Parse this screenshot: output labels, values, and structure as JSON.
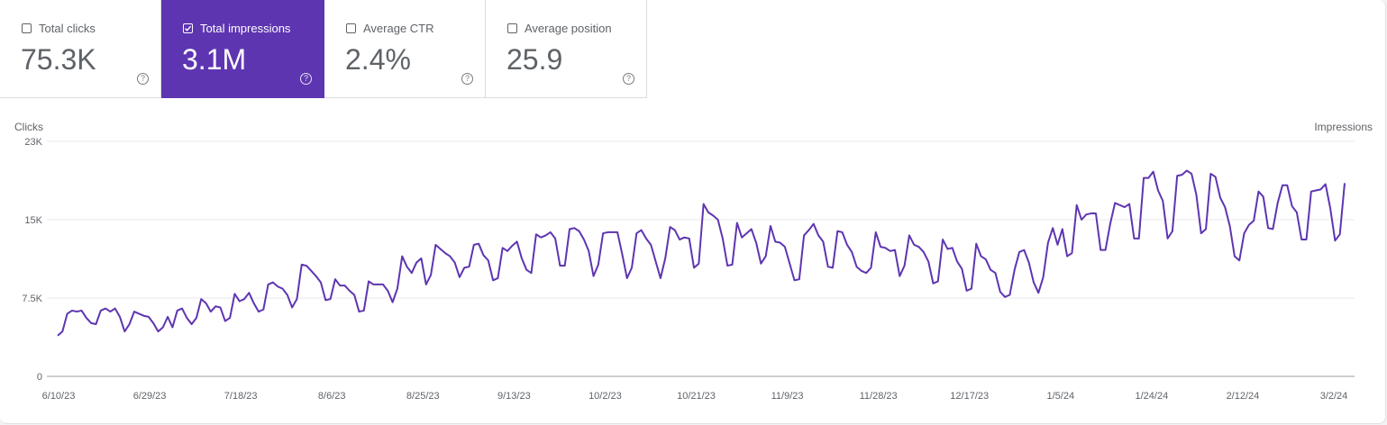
{
  "metrics": [
    {
      "label": "Total clicks",
      "value": "75.3K",
      "checked": false
    },
    {
      "label": "Total impressions",
      "value": "3.1M",
      "checked": true
    },
    {
      "label": "Average CTR",
      "value": "2.4%",
      "checked": false
    },
    {
      "label": "Average position",
      "value": "25.9",
      "checked": false
    }
  ],
  "help_glyph": "?",
  "colors": {
    "accent": "#5e35b1",
    "line": "#5e35b1",
    "grid": "#e8eaed"
  },
  "chart_data": {
    "type": "line",
    "left_axis_label": "Clicks",
    "right_axis_label": "Impressions",
    "y_ticks": [
      {
        "value": 0,
        "label": "0"
      },
      {
        "value": 7500,
        "label": "7.5K"
      },
      {
        "value": 15000,
        "label": "15K"
      },
      {
        "value": 22500,
        "label": "23K"
      }
    ],
    "ylim": [
      0,
      22500
    ],
    "x_start": "6/10/23",
    "x_end": "3/3/24",
    "x_tick_labels": [
      "6/10/23",
      "6/29/23",
      "7/18/23",
      "8/6/23",
      "8/25/23",
      "9/13/23",
      "10/2/23",
      "10/21/23",
      "11/9/23",
      "11/28/23",
      "12/17/23",
      "1/5/24",
      "1/24/24",
      "2/12/24",
      "3/2/24"
    ],
    "grid": true,
    "series": [
      {
        "values": [
          3900,
          4300,
          6000,
          6300,
          6200,
          6300,
          5600,
          5100,
          5000,
          6300,
          6500,
          6200,
          6500,
          5700,
          4300,
          5000,
          6200,
          6000,
          5800,
          5700,
          5100,
          4300,
          4700,
          5700,
          4700,
          6300,
          6500,
          5600,
          5000,
          5600,
          7400,
          7000,
          6200,
          6700,
          6600,
          5300,
          5600,
          7900,
          7200,
          7400,
          8000,
          7000,
          6200,
          6400,
          8800,
          9000,
          8600,
          8400,
          7800,
          6600,
          7400,
          10700,
          10600,
          10100,
          9600,
          9000,
          7300,
          7400,
          9300,
          8700,
          8700,
          8200,
          7800,
          6200,
          6300,
          9100,
          8800,
          8800,
          8800,
          8200,
          7100,
          8400,
          11500,
          10500,
          9900,
          10900,
          11300,
          8800,
          9700,
          12600,
          12200,
          11800,
          11500,
          10900,
          9500,
          10400,
          10500,
          12600,
          12700,
          11600,
          11100,
          9200,
          9400,
          12300,
          12000,
          12500,
          12900,
          11300,
          10200,
          9900,
          13600,
          13300,
          13500,
          13800,
          13200,
          10600,
          10600,
          14100,
          14200,
          13900,
          13100,
          12000,
          9600,
          10700,
          13700,
          13800,
          13800,
          13800,
          11700,
          9400,
          10400,
          13700,
          14000,
          13200,
          12600,
          11000,
          9400,
          11300,
          14300,
          14000,
          13100,
          13300,
          13200,
          10400,
          10800,
          16500,
          15700,
          15400,
          15000,
          13200,
          10600,
          10700,
          14700,
          13300,
          13700,
          14100,
          12800,
          10800,
          11500,
          14400,
          12900,
          12800,
          12400,
          10800,
          9200,
          9300,
          13500,
          14000,
          14600,
          13500,
          12900,
          10500,
          10400,
          13900,
          13800,
          12600,
          11900,
          10500,
          10100,
          9900,
          10400,
          13800,
          12400,
          12300,
          12000,
          12100,
          9600,
          10600,
          13500,
          12600,
          12400,
          11900,
          11000,
          8900,
          9100,
          13100,
          12200,
          12300,
          11000,
          10300,
          8200,
          8400,
          12700,
          11500,
          11200,
          10200,
          9900,
          8100,
          7600,
          7800,
          10200,
          11900,
          12100,
          10900,
          9000,
          8000,
          9500,
          12800,
          14200,
          12600,
          14100,
          11500,
          11800,
          16400,
          15000,
          15500,
          15600,
          15600,
          12100,
          12100,
          14600,
          16600,
          16400,
          16200,
          16500,
          13200,
          13200,
          19000,
          19000,
          19600,
          17800,
          16800,
          13200,
          13900,
          19200,
          19300,
          19700,
          19400,
          17400,
          13700,
          14100,
          19400,
          19100,
          17100,
          16200,
          14400,
          11500,
          11100,
          13700,
          14500,
          14900,
          17700,
          17200,
          14200,
          14100,
          16600,
          18300,
          18300,
          16300,
          15700,
          13100,
          13100,
          17700,
          17800,
          17900,
          18400,
          16100,
          13000,
          13600,
          18500
        ]
      }
    ]
  }
}
